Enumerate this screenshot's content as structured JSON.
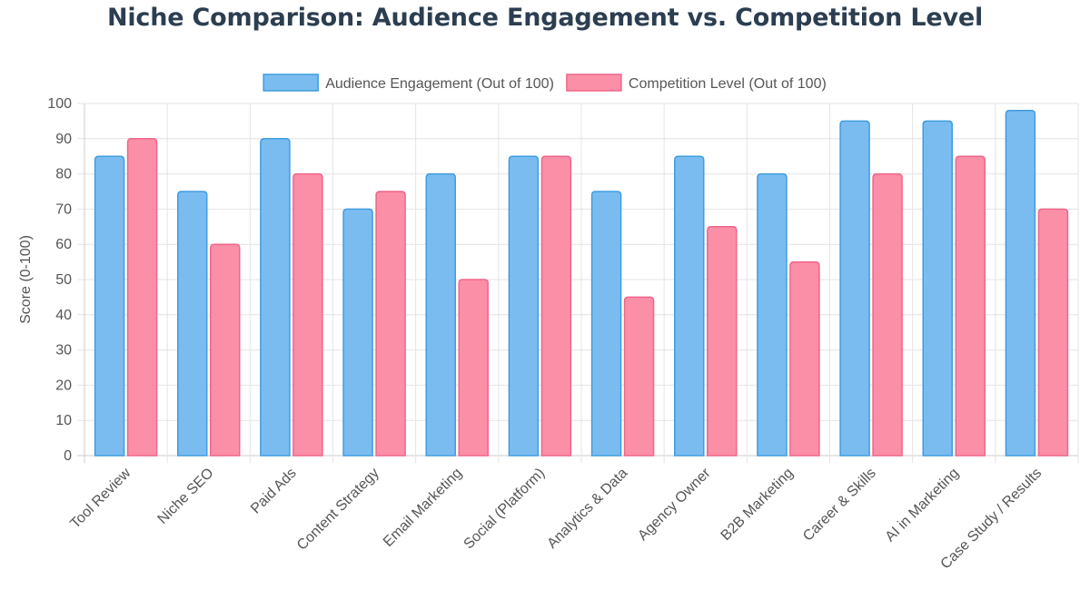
{
  "chart_data": {
    "type": "bar",
    "title": "Niche Comparison: Audience Engagement vs. Competition Level",
    "xlabel": "",
    "ylabel": "Score (0-100)",
    "ylim": [
      0,
      100
    ],
    "ystep": 10,
    "grid": true,
    "legend_position": "top",
    "categories": [
      "Tool Review",
      "Niche SEO",
      "Paid Ads",
      "Content Strategy",
      "Email Marketing",
      "Social (Platform)",
      "Analytics & Data",
      "Agency Owner",
      "B2B Marketing",
      "Career & Skills",
      "AI in Marketing",
      "Case Study / Results"
    ],
    "series": [
      {
        "name": "Audience Engagement (Out of 100)",
        "values": [
          85,
          75,
          90,
          70,
          80,
          85,
          75,
          85,
          80,
          95,
          95,
          98
        ],
        "fill": "#7bbcf0",
        "stroke": "#3f9de0"
      },
      {
        "name": "Competition Level (Out of 100)",
        "values": [
          90,
          60,
          80,
          75,
          50,
          85,
          45,
          65,
          55,
          80,
          85,
          70
        ],
        "fill": "#fb8fa7",
        "stroke": "#f0668a"
      }
    ]
  }
}
